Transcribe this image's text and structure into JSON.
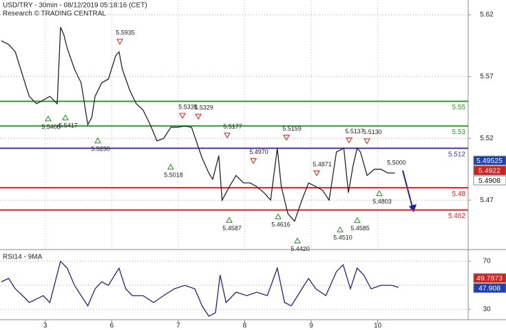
{
  "chart_data": [
    {
      "type": "line",
      "title": "USD/TRY - 30min - 08/12/2019 05:18:16 (CET)",
      "subtitle": "Research © TRADING CENTRAL",
      "x": [
        -0.66,
        -0.55,
        -0.45,
        -0.34,
        -0.24,
        -0.13,
        -0.03,
        0.07,
        0.18,
        0.23,
        0.28,
        0.33,
        0.44,
        0.54,
        0.59,
        0.64,
        0.7,
        0.75,
        0.85,
        0.95,
        1.06,
        1.11,
        1.16,
        1.27,
        1.37,
        1.47,
        1.58,
        1.68,
        1.78,
        1.89,
        1.99,
        2.1,
        2.2,
        2.36,
        2.46,
        2.52,
        2.61,
        2.66,
        2.77,
        2.87,
        2.98,
        3.08,
        3.18,
        3.29,
        3.39,
        3.49,
        3.55,
        3.65,
        3.75,
        3.86,
        3.96,
        4.07,
        4.17,
        4.27,
        4.38,
        4.49,
        4.56,
        4.63,
        4.69,
        4.74,
        4.84,
        4.95,
        5.05,
        5.15,
        5.26
      ],
      "series": [
        {
          "name": "USD/TRY",
          "color": "#222222",
          "values": [
            5.599,
            5.596,
            5.59,
            5.571,
            5.554,
            5.548,
            5.551,
            5.554,
            5.548,
            5.61,
            5.604,
            5.593,
            5.576,
            5.565,
            5.548,
            5.531,
            5.537,
            5.554,
            5.565,
            5.568,
            5.587,
            5.59,
            5.576,
            5.559,
            5.548,
            5.543,
            5.531,
            5.518,
            5.52,
            5.529,
            5.529,
            5.53,
            5.529,
            5.504,
            5.492,
            5.487,
            5.506,
            5.47,
            5.481,
            5.49,
            5.484,
            5.484,
            5.481,
            5.476,
            5.47,
            5.512,
            5.481,
            5.459,
            5.453,
            5.47,
            5.484,
            5.481,
            5.478,
            5.47,
            5.509,
            5.512,
            5.476,
            5.498,
            5.512,
            5.509,
            5.49,
            5.495,
            5.495,
            5.492,
            5.492
          ]
        }
      ],
      "ylim": [
        5.43,
        5.632
      ],
      "xlim": [
        -0.68,
        6.36
      ],
      "yticks": [
        5.47,
        5.52,
        5.57,
        5.62
      ],
      "xticks": [
        {
          "value": 0,
          "label": "3"
        },
        {
          "value": 1,
          "label": "6"
        },
        {
          "value": 2,
          "label": "7"
        },
        {
          "value": 3,
          "label": "8"
        },
        {
          "value": 4,
          "label": "9"
        },
        {
          "value": 5,
          "label": "10"
        }
      ],
      "grid": true,
      "levels": [
        {
          "value": 5.55,
          "color": "#2e9a2e"
        },
        {
          "value": 5.53,
          "color": "#2e9a2e"
        },
        {
          "value": 5.512,
          "color": "#4b2bb8"
        },
        {
          "value": 5.48,
          "color": "#e01b1b"
        },
        {
          "value": 5.462,
          "color": "#e01b1b"
        }
      ],
      "annotations": [
        {
          "value": 5.5935,
          "label": "5.5935",
          "kind": "high"
        },
        {
          "value": 5.5408,
          "label": "5.5408",
          "kind": "low"
        },
        {
          "value": 5.5417,
          "label": "5.5417",
          "kind": "low"
        },
        {
          "value": 5.523,
          "label": "5.5230",
          "kind": "low"
        },
        {
          "value": 5.5335,
          "label": "5.5335",
          "kind": "high"
        },
        {
          "value": 5.5329,
          "label": "5.5329",
          "kind": "high"
        },
        {
          "value": 5.5018,
          "label": "5.5018",
          "kind": "low"
        },
        {
          "value": 5.5177,
          "label": "5.5177",
          "kind": "high"
        },
        {
          "value": 5.4587,
          "label": "5.4587",
          "kind": "low"
        },
        {
          "value": 5.497,
          "label": "5.4970",
          "kind": "high"
        },
        {
          "value": 5.5159,
          "label": "5.5159",
          "kind": "high"
        },
        {
          "value": 5.4616,
          "label": "5.4616",
          "kind": "low"
        },
        {
          "value": 5.442,
          "label": "5.4420",
          "kind": "low"
        },
        {
          "value": 5.4871,
          "label": "5.4871",
          "kind": "high"
        },
        {
          "value": 5.5137,
          "label": "5.5137",
          "kind": "high"
        },
        {
          "value": 5.513,
          "label": "5.5130",
          "kind": "high"
        },
        {
          "value": 5.451,
          "label": "5.4510",
          "kind": "low"
        },
        {
          "value": 5.4585,
          "label": "5.4585",
          "kind": "low"
        },
        {
          "value": 5.5,
          "label": "5.5000",
          "kind": "target"
        },
        {
          "value": 5.4803,
          "label": "5.4803",
          "kind": "low"
        }
      ],
      "price_boxes": [
        {
          "value": 5.49525,
          "color": "#1f3fb0"
        },
        {
          "value": 5.4922,
          "color": "#d41e1e"
        },
        {
          "value": 5.4908,
          "color": "#ffffff"
        }
      ]
    },
    {
      "type": "line",
      "title": "RSI14 - 9MA",
      "x": [
        -0.66,
        -0.55,
        -0.45,
        -0.34,
        -0.24,
        -0.13,
        -0.03,
        0.07,
        0.23,
        0.33,
        0.44,
        0.54,
        0.64,
        0.75,
        0.85,
        0.95,
        1.11,
        1.21,
        1.31,
        1.47,
        1.63,
        1.78,
        1.94,
        2.1,
        2.25,
        2.36,
        2.46,
        2.56,
        2.63,
        2.72,
        2.87,
        3.03,
        3.18,
        3.34,
        3.49,
        3.6,
        3.7,
        3.86,
        3.96,
        4.07,
        4.22,
        4.38,
        4.48,
        4.59,
        4.69,
        4.79,
        4.9,
        5.05,
        5.21,
        5.31
      ],
      "series": [
        {
          "name": "RSI14",
          "color": "#22227a",
          "values": [
            52.9,
            55.7,
            47.1,
            41.4,
            35.7,
            38.6,
            41.4,
            35.7,
            70,
            64.3,
            50,
            41.4,
            32.9,
            47.1,
            52.9,
            50,
            64.3,
            47.1,
            41.4,
            41.4,
            35.7,
            41.4,
            47.1,
            50,
            47.1,
            32.9,
            24.3,
            27.1,
            58.6,
            35.7,
            44.3,
            41.4,
            44.3,
            41.4,
            64.3,
            35.7,
            32.9,
            47.1,
            55.7,
            47.1,
            41.4,
            61.4,
            67.1,
            47.1,
            64.3,
            58.6,
            47.1,
            50,
            50,
            48.3
          ]
        }
      ],
      "ylim": [
        21.4,
        78.6
      ],
      "xlim": [
        -0.68,
        6.36
      ],
      "yticks": [
        30,
        70
      ],
      "value_boxes": [
        {
          "value": 49.7873,
          "color": "#d41e1e"
        },
        {
          "value": 47.908,
          "color": "#1f3fb0"
        }
      ]
    }
  ]
}
